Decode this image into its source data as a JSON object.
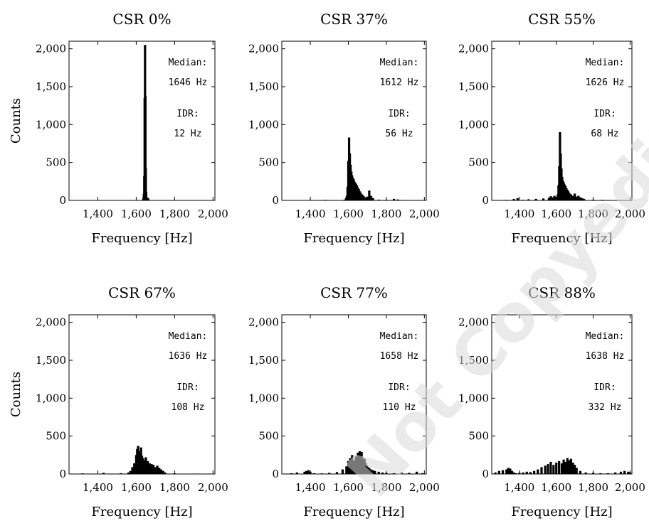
{
  "watermark": "Not Copyedited",
  "y_axis_label": "Counts",
  "chart_data": [
    {
      "type": "bar",
      "title": "CSR 0%",
      "xlabel": "Frequency [Hz]",
      "ylabel": "Counts",
      "xlim": [
        1250,
        2010
      ],
      "ylim": [
        0,
        2100
      ],
      "xticks": [
        1400,
        1600,
        1800,
        2000
      ],
      "xtick_labels": [
        "1,400",
        "1,600",
        "1,800",
        "2,000"
      ],
      "yticks": [
        0,
        500,
        1000,
        1500,
        2000
      ],
      "ytick_labels": [
        "0",
        "500",
        "1,000",
        "1,500",
        "2,000"
      ],
      "median_label": "Median:",
      "median_value": "1646 Hz",
      "idr_label": "IDR:",
      "idr_value": "12 Hz",
      "x": [
        1634,
        1636,
        1638,
        1640,
        1642,
        1644,
        1646,
        1648,
        1650,
        1652,
        1654,
        1656,
        1658,
        1662,
        1666
      ],
      "values": [
        5,
        12,
        40,
        90,
        320,
        1350,
        2050,
        1380,
        420,
        110,
        45,
        25,
        12,
        30,
        8
      ]
    },
    {
      "type": "bar",
      "title": "CSR 37%",
      "xlabel": "Frequency [Hz]",
      "ylabel": "",
      "xlim": [
        1250,
        2010
      ],
      "ylim": [
        0,
        2100
      ],
      "xticks": [
        1400,
        1600,
        1800,
        2000
      ],
      "xtick_labels": [
        "1,400",
        "1,600",
        "1,800",
        "2,000"
      ],
      "yticks": [
        0,
        500,
        1000,
        1500,
        2000
      ],
      "ytick_labels": [
        "0",
        "500",
        "1,000",
        "1,500",
        "2,000"
      ],
      "median_label": "Median:",
      "median_value": "1612 Hz",
      "idr_label": "IDR:",
      "idr_value": "56 Hz",
      "x": [
        1480,
        1500,
        1580,
        1588,
        1592,
        1596,
        1600,
        1604,
        1608,
        1612,
        1616,
        1620,
        1624,
        1628,
        1632,
        1636,
        1640,
        1645,
        1650,
        1655,
        1660,
        1665,
        1672,
        1680,
        1690,
        1700,
        1710,
        1720,
        1730,
        1760,
        1800,
        1840,
        1860,
        1880
      ],
      "values": [
        8,
        5,
        10,
        30,
        60,
        180,
        520,
        830,
        620,
        470,
        380,
        330,
        300,
        280,
        250,
        230,
        220,
        200,
        170,
        150,
        120,
        100,
        80,
        60,
        40,
        50,
        130,
        60,
        30,
        10,
        8,
        20,
        12,
        5
      ]
    },
    {
      "type": "bar",
      "title": "CSR 55%",
      "xlabel": "Frequency [Hz]",
      "ylabel": "",
      "xlim": [
        1250,
        2010
      ],
      "ylim": [
        0,
        2100
      ],
      "xticks": [
        1400,
        1600,
        1800,
        2000
      ],
      "xtick_labels": [
        "1,400",
        "1,600",
        "1,800",
        "2,000"
      ],
      "yticks": [
        0,
        500,
        1000,
        1500,
        2000
      ],
      "ytick_labels": [
        "0",
        "500",
        "1,000",
        "1,500",
        "2,000"
      ],
      "median_label": "Median:",
      "median_value": "1626 Hz",
      "idr_label": "IDR:",
      "idr_value": "68 Hz",
      "x": [
        1290,
        1330,
        1370,
        1390,
        1420,
        1450,
        1490,
        1530,
        1560,
        1570,
        1580,
        1590,
        1600,
        1608,
        1612,
        1616,
        1620,
        1624,
        1628,
        1632,
        1636,
        1640,
        1645,
        1650,
        1655,
        1660,
        1665,
        1670,
        1680,
        1690,
        1700,
        1710,
        1720,
        1730,
        1740,
        1750,
        1800,
        1850,
        1950
      ],
      "values": [
        5,
        8,
        20,
        30,
        8,
        15,
        20,
        25,
        35,
        55,
        40,
        60,
        45,
        80,
        200,
        450,
        900,
        620,
        420,
        310,
        260,
        240,
        210,
        190,
        160,
        140,
        120,
        100,
        80,
        60,
        90,
        50,
        60,
        40,
        30,
        20,
        10,
        8,
        5
      ]
    },
    {
      "type": "bar",
      "title": "CSR 67%",
      "xlabel": "Frequency [Hz]",
      "ylabel": "Counts",
      "xlim": [
        1250,
        2010
      ],
      "ylim": [
        0,
        2100
      ],
      "xticks": [
        1400,
        1600,
        1800,
        2000
      ],
      "xtick_labels": [
        "1,400",
        "1,600",
        "1,800",
        "2,000"
      ],
      "yticks": [
        0,
        500,
        1000,
        1500,
        2000
      ],
      "ytick_labels": [
        "0",
        "500",
        "1,000",
        "1,500",
        "2,000"
      ],
      "median_label": "Median:",
      "median_value": "1636 Hz",
      "idr_label": "IDR:",
      "idr_value": "108 Hz",
      "x": [
        1320,
        1350,
        1430,
        1470,
        1520,
        1560,
        1570,
        1580,
        1590,
        1600,
        1605,
        1610,
        1615,
        1620,
        1625,
        1630,
        1635,
        1640,
        1645,
        1650,
        1655,
        1660,
        1665,
        1670,
        1675,
        1680,
        1685,
        1690,
        1700,
        1710,
        1720,
        1730,
        1740,
        1750,
        1800,
        1900
      ],
      "values": [
        8,
        5,
        15,
        5,
        10,
        20,
        40,
        90,
        140,
        250,
        330,
        370,
        300,
        260,
        350,
        240,
        210,
        180,
        160,
        220,
        150,
        170,
        130,
        140,
        110,
        130,
        100,
        120,
        90,
        110,
        80,
        60,
        40,
        20,
        8,
        5
      ]
    },
    {
      "type": "bar",
      "title": "CSR 77%",
      "xlabel": "Frequency [Hz]",
      "ylabel": "",
      "xlim": [
        1250,
        2010
      ],
      "ylim": [
        0,
        2100
      ],
      "xticks": [
        1400,
        1600,
        1800,
        2000
      ],
      "xtick_labels": [
        "1,400",
        "1,600",
        "1,800",
        "2,000"
      ],
      "yticks": [
        0,
        500,
        1000,
        1500,
        2000
      ],
      "ytick_labels": [
        "0",
        "500",
        "1,000",
        "1,500",
        "2,000"
      ],
      "median_label": "Median:",
      "median_value": "1658 Hz",
      "idr_label": "IDR:",
      "idr_value": "110 Hz",
      "x": [
        1300,
        1330,
        1370,
        1380,
        1390,
        1400,
        1420,
        1460,
        1500,
        1540,
        1570,
        1590,
        1600,
        1610,
        1620,
        1630,
        1640,
        1650,
        1660,
        1665,
        1670,
        1675,
        1680,
        1685,
        1690,
        1695,
        1700,
        1710,
        1720,
        1730,
        1740,
        1760,
        1780,
        1800,
        1840,
        1880,
        1920,
        1960,
        1990
      ],
      "values": [
        10,
        20,
        30,
        40,
        50,
        30,
        10,
        8,
        15,
        25,
        60,
        100,
        170,
        210,
        250,
        180,
        230,
        280,
        300,
        230,
        290,
        210,
        180,
        200,
        150,
        120,
        100,
        80,
        60,
        50,
        40,
        30,
        20,
        15,
        10,
        20,
        15,
        30,
        10
      ]
    },
    {
      "type": "bar",
      "title": "CSR 88%",
      "xlabel": "Frequency [Hz]",
      "ylabel": "",
      "xlim": [
        1250,
        2010
      ],
      "ylim": [
        0,
        2100
      ],
      "xticks": [
        1400,
        1600,
        1800,
        2000
      ],
      "xtick_labels": [
        "1,400",
        "1,600",
        "1,800",
        "2,000"
      ],
      "yticks": [
        0,
        500,
        1000,
        1500,
        2000
      ],
      "ytick_labels": [
        "0",
        "500",
        "1,000",
        "1,500",
        "2,000"
      ],
      "median_label": "Median:",
      "median_value": "1638 Hz",
      "idr_label": "IDR:",
      "idr_value": "332 Hz",
      "x": [
        1270,
        1290,
        1310,
        1330,
        1340,
        1350,
        1360,
        1370,
        1380,
        1400,
        1420,
        1440,
        1460,
        1480,
        1500,
        1520,
        1540,
        1555,
        1570,
        1585,
        1600,
        1615,
        1630,
        1640,
        1650,
        1660,
        1670,
        1680,
        1690,
        1700,
        1710,
        1730,
        1760,
        1800,
        1840,
        1880,
        1920,
        1950,
        1970,
        1990,
        2000
      ],
      "values": [
        20,
        40,
        50,
        60,
        80,
        70,
        40,
        20,
        10,
        15,
        20,
        30,
        25,
        40,
        60,
        90,
        110,
        130,
        160,
        120,
        150,
        170,
        140,
        190,
        160,
        210,
        180,
        200,
        150,
        120,
        80,
        40,
        20,
        15,
        10,
        10,
        20,
        30,
        40,
        30,
        20
      ]
    }
  ]
}
